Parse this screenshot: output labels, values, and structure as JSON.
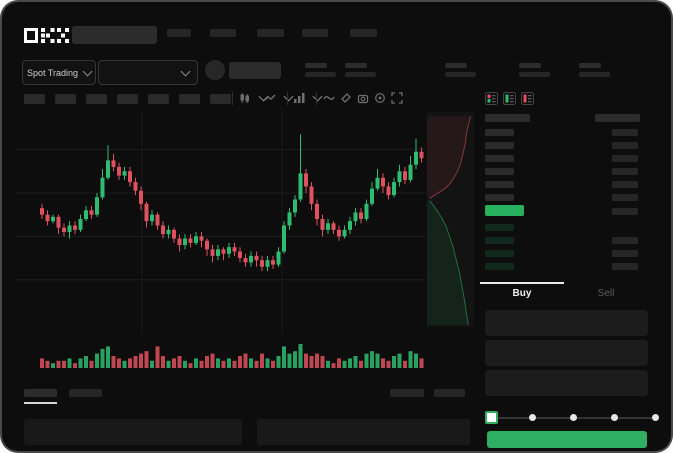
{
  "header": {
    "brand": "OKX",
    "market_selector_label": "Spot Trading",
    "nav_placeholder_count": 5,
    "stat_group_count": 5
  },
  "toolbar": {
    "chip_count": 7,
    "icons": [
      "candles-chart-icon",
      "line-chart-icon",
      "interval-icon",
      "indicators-icon",
      "compare-tag-icon",
      "camera-icon",
      "settings-icon",
      "fullscreen-icon"
    ]
  },
  "orderbook": {
    "view_mode_icons": [
      "book-split-icon",
      "book-bids-icon",
      "book-asks-icon"
    ],
    "ask_row_count": 6,
    "bid_row_count": 4,
    "bid_right_bar_count": 3,
    "last_price_highlight_color": "#27b15e"
  },
  "trade_panel": {
    "tabs": [
      {
        "label": "Buy",
        "active": true
      },
      {
        "label": "Sell",
        "active": false
      }
    ],
    "field_count": 3,
    "slider": {
      "steps": 5,
      "selected_index": 0
    },
    "submit_button_color": "#2faf62"
  },
  "colors": {
    "up": "#2ebd70",
    "down": "#e0515f",
    "accent_green": "#2faf62",
    "depth_ask": "#e0515f",
    "depth_bid": "#2ebd70"
  },
  "chart_data": {
    "type": "candlestick",
    "title": "",
    "xlabel": "",
    "ylabel": "",
    "price_scale": [
      0,
      100
    ],
    "grid": {
      "h_lines": [
        85,
        65,
        45,
        25
      ],
      "v_lines": [
        140,
        280
      ]
    },
    "up_color": "#2ebd70",
    "down_color": "#e0515f",
    "candles_ochl": [
      [
        58,
        55,
        60,
        53
      ],
      [
        55,
        52,
        57,
        50
      ],
      [
        52,
        54,
        55,
        51
      ],
      [
        54,
        49,
        55,
        46
      ],
      [
        49,
        47,
        51,
        45
      ],
      [
        47,
        50,
        52,
        44
      ],
      [
        50,
        48,
        52,
        46
      ],
      [
        48,
        53,
        55,
        47
      ],
      [
        53,
        57,
        59,
        52
      ],
      [
        57,
        55,
        59,
        53
      ],
      [
        55,
        63,
        65,
        54
      ],
      [
        63,
        72,
        76,
        62
      ],
      [
        72,
        80,
        87,
        71
      ],
      [
        80,
        77,
        83,
        75
      ],
      [
        77,
        73,
        79,
        71
      ],
      [
        73,
        75,
        77,
        71
      ],
      [
        75,
        70,
        77,
        68
      ],
      [
        70,
        66,
        72,
        64
      ],
      [
        66,
        60,
        68,
        57
      ],
      [
        60,
        52,
        61,
        49
      ],
      [
        52,
        55,
        57,
        50
      ],
      [
        55,
        50,
        56,
        48
      ],
      [
        50,
        46,
        52,
        44
      ],
      [
        46,
        48,
        50,
        44
      ],
      [
        48,
        44,
        49,
        42
      ],
      [
        44,
        41,
        46,
        38
      ],
      [
        41,
        44,
        46,
        39
      ],
      [
        44,
        42,
        46,
        40
      ],
      [
        42,
        45,
        47,
        41
      ],
      [
        45,
        43,
        47,
        40
      ],
      [
        43,
        39,
        44,
        36
      ],
      [
        39,
        36,
        41,
        33
      ],
      [
        36,
        39,
        41,
        34
      ],
      [
        39,
        37,
        40,
        34
      ],
      [
        37,
        40,
        42,
        35
      ],
      [
        40,
        38,
        42,
        36
      ],
      [
        38,
        35,
        40,
        33
      ],
      [
        35,
        33,
        37,
        31
      ],
      [
        33,
        36,
        38,
        31
      ],
      [
        36,
        34,
        38,
        31
      ],
      [
        34,
        31,
        36,
        29
      ],
      [
        31,
        34,
        36,
        29
      ],
      [
        34,
        32,
        36,
        30
      ],
      [
        32,
        38,
        40,
        31
      ],
      [
        38,
        50,
        52,
        37
      ],
      [
        50,
        56,
        58,
        48
      ],
      [
        56,
        62,
        64,
        54
      ],
      [
        62,
        74,
        92,
        61
      ],
      [
        74,
        68,
        76,
        65
      ],
      [
        68,
        60,
        70,
        57
      ],
      [
        60,
        53,
        62,
        50
      ],
      [
        53,
        48,
        55,
        45
      ],
      [
        48,
        51,
        53,
        46
      ],
      [
        51,
        48,
        52,
        46
      ],
      [
        48,
        45,
        50,
        43
      ],
      [
        45,
        48,
        50,
        44
      ],
      [
        48,
        52,
        54,
        46
      ],
      [
        52,
        56,
        58,
        50
      ],
      [
        56,
        53,
        58,
        51
      ],
      [
        53,
        60,
        62,
        52
      ],
      [
        60,
        67,
        70,
        59
      ],
      [
        67,
        72,
        76,
        66
      ],
      [
        72,
        68,
        74,
        65
      ],
      [
        68,
        64,
        70,
        62
      ],
      [
        64,
        70,
        72,
        63
      ],
      [
        70,
        75,
        78,
        68
      ],
      [
        75,
        71,
        77,
        69
      ],
      [
        71,
        78,
        82,
        70
      ],
      [
        78,
        84,
        90,
        76
      ],
      [
        84,
        81,
        86,
        79
      ]
    ],
    "volumes": [
      4,
      3,
      2,
      3,
      3,
      4,
      2,
      4,
      5,
      3,
      6,
      8,
      9,
      5,
      4,
      3,
      4,
      5,
      6,
      7,
      3,
      9,
      5,
      3,
      4,
      5,
      3,
      2,
      4,
      3,
      5,
      6,
      4,
      3,
      4,
      3,
      5,
      6,
      4,
      3,
      6,
      4,
      3,
      5,
      9,
      6,
      7,
      10,
      6,
      5,
      6,
      5,
      3,
      2,
      4,
      3,
      4,
      5,
      3,
      6,
      7,
      6,
      4,
      3,
      5,
      6,
      3,
      7,
      6,
      4
    ],
    "depth": {
      "asks": [
        [
          0.97,
          0.01
        ],
        [
          0.92,
          0.05
        ],
        [
          0.88,
          0.09
        ],
        [
          0.85,
          0.14
        ],
        [
          0.8,
          0.19
        ],
        [
          0.74,
          0.24
        ],
        [
          0.66,
          0.28
        ],
        [
          0.55,
          0.32
        ],
        [
          0.42,
          0.35
        ],
        [
          0.28,
          0.37
        ],
        [
          0.06,
          0.4
        ]
      ],
      "bids": [
        [
          0.06,
          0.41
        ],
        [
          0.2,
          0.45
        ],
        [
          0.32,
          0.49
        ],
        [
          0.42,
          0.53
        ],
        [
          0.5,
          0.58
        ],
        [
          0.58,
          0.63
        ],
        [
          0.65,
          0.69
        ],
        [
          0.72,
          0.75
        ],
        [
          0.78,
          0.82
        ],
        [
          0.84,
          0.89
        ],
        [
          0.88,
          0.95
        ],
        [
          0.92,
          1.0
        ]
      ]
    }
  }
}
